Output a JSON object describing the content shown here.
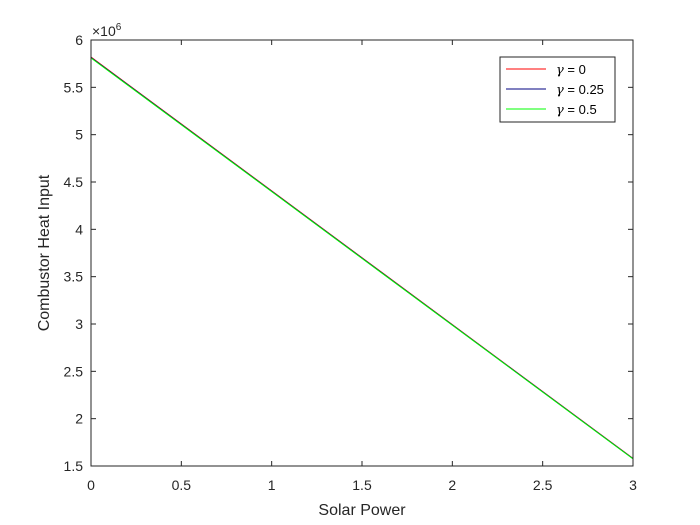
{
  "chart_data": {
    "type": "line",
    "xlabel": "Solar Power",
    "ylabel": "Combustor Heat Input",
    "xlim": [
      0,
      3
    ],
    "ylim": [
      1.5,
      6
    ],
    "xticks": [
      0,
      0.5,
      1,
      1.5,
      2,
      2.5,
      3
    ],
    "yticks": [
      1.5,
      2,
      2.5,
      3,
      3.5,
      4,
      4.5,
      5,
      5.5,
      6
    ],
    "xtick_labels": [
      "0",
      "0.5",
      "1",
      "1.5",
      "2",
      "2.5",
      "3"
    ],
    "ytick_labels": [
      "1.5",
      "2",
      "2.5",
      "3",
      "3.5",
      "4",
      "4.5",
      "5",
      "5.5",
      "6"
    ],
    "y_multiplier": {
      "base": "×10",
      "exponent": "6"
    },
    "grid": false,
    "legend_position": "top-right",
    "series": [
      {
        "name": "= 0",
        "symbol": "γ",
        "color": "#ff0000",
        "x": [
          0,
          3
        ],
        "y": [
          5.82,
          1.58
        ]
      },
      {
        "name": "= 0.25",
        "symbol": "γ",
        "color": "#000080",
        "x": [
          0,
          3
        ],
        "y": [
          5.815,
          1.578
        ]
      },
      {
        "name": "= 0.5",
        "symbol": "γ",
        "color": "#00ff00",
        "x": [
          0,
          3
        ],
        "y": [
          5.81,
          1.575
        ]
      }
    ]
  }
}
